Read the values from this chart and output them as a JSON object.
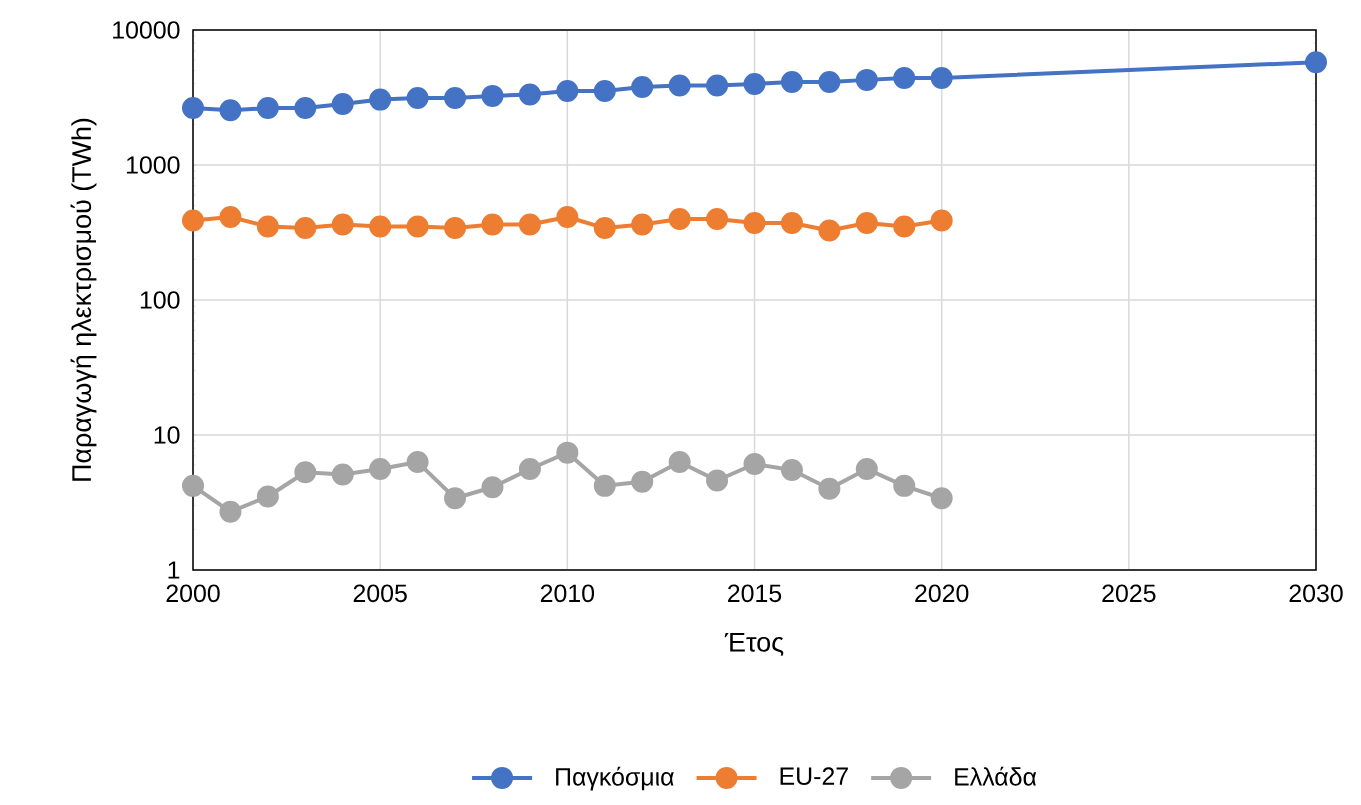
{
  "chart_data": {
    "type": "line",
    "xlabel": "Έτος",
    "ylabel": "Παραγωγή ηλεκτρισμού (TWh)",
    "log": "y",
    "grid": true,
    "legend": "bottom",
    "marker": "circle",
    "line_style": "solid",
    "xlim": [
      2000,
      2030
    ],
    "xticks": [
      2000,
      2005,
      2010,
      2015,
      2020,
      2025,
      2030
    ],
    "ylim": [
      1,
      10000
    ],
    "yticks": [
      1,
      10,
      100,
      1000,
      10000
    ],
    "series": [
      {
        "name": "Παγκόσμια",
        "color": "#4472c4",
        "x": [
          2000,
          2001,
          2002,
          2003,
          2004,
          2005,
          2006,
          2007,
          2008,
          2009,
          2010,
          2011,
          2012,
          2013,
          2014,
          2015,
          2016,
          2017,
          2018,
          2019,
          2020,
          2030
        ],
        "values": [
          2640,
          2540,
          2640,
          2640,
          2830,
          3050,
          3130,
          3130,
          3250,
          3330,
          3530,
          3530,
          3780,
          3880,
          3880,
          3980,
          4120,
          4120,
          4270,
          4410,
          4410,
          5770
        ]
      },
      {
        "name": "EU-27",
        "color": "#ed7d31",
        "x": [
          2000,
          2001,
          2002,
          2003,
          2004,
          2005,
          2006,
          2007,
          2008,
          2009,
          2010,
          2011,
          2012,
          2013,
          2014,
          2015,
          2016,
          2017,
          2018,
          2019,
          2020
        ],
        "values": [
          388,
          412,
          350,
          341,
          362,
          350,
          350,
          341,
          362,
          362,
          412,
          341,
          362,
          398,
          398,
          372,
          372,
          327,
          372,
          350,
          388
        ]
      },
      {
        "name": "Ελλάδα",
        "color": "#a5a5a5",
        "x": [
          2000,
          2001,
          2002,
          2003,
          2004,
          2005,
          2006,
          2007,
          2008,
          2009,
          2010,
          2011,
          2012,
          2013,
          2014,
          2015,
          2016,
          2017,
          2018,
          2019,
          2020
        ],
        "values": [
          4.2,
          2.7,
          3.5,
          5.3,
          5.1,
          5.6,
          6.3,
          3.4,
          4.1,
          5.6,
          7.4,
          4.2,
          4.5,
          6.3,
          4.6,
          6.1,
          5.5,
          4.0,
          5.6,
          4.2,
          3.4
        ]
      }
    ]
  }
}
